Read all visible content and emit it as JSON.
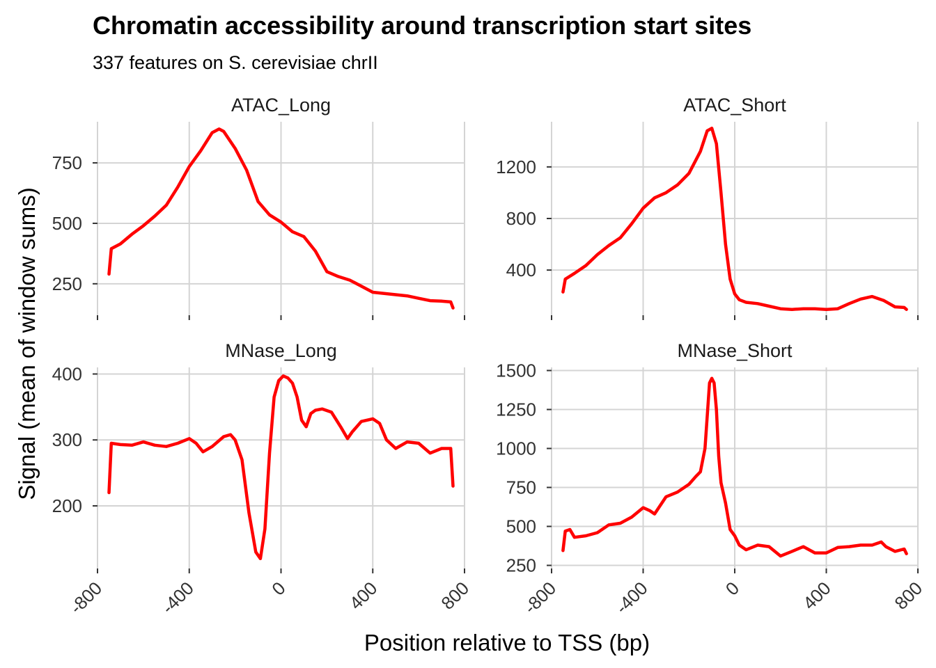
{
  "chart_data": {
    "type": "line",
    "title": "Chromatin accessibility around transcription start sites",
    "subtitle": "337 features on S. cerevisiae chrII",
    "xlabel": "Position relative to TSS (bp)",
    "ylabel": "Signal (mean of window sums)",
    "xlim": [
      -800,
      800
    ],
    "x_ticks": [
      "-800",
      "-400",
      "0",
      "400",
      "800"
    ],
    "grid": true,
    "color": "#ff0000",
    "panels": [
      {
        "name": "ATAC_Long",
        "ylim": [
          120,
          920
        ],
        "y_ticks": [
          "250",
          "500",
          "750"
        ],
        "x": [
          -750,
          -740,
          -700,
          -650,
          -600,
          -550,
          -500,
          -450,
          -400,
          -350,
          -300,
          -270,
          -250,
          -200,
          -150,
          -100,
          -50,
          0,
          50,
          100,
          150,
          200,
          250,
          300,
          350,
          400,
          450,
          500,
          550,
          600,
          650,
          700,
          740,
          750
        ],
        "values": [
          290,
          395,
          415,
          455,
          490,
          530,
          575,
          650,
          735,
          800,
          875,
          890,
          880,
          810,
          720,
          590,
          535,
          505,
          465,
          445,
          385,
          300,
          280,
          265,
          240,
          215,
          210,
          205,
          200,
          190,
          180,
          178,
          175,
          150
        ]
      },
      {
        "name": "ATAC_Short",
        "ylim": [
          50,
          1550
        ],
        "y_ticks": [
          "400",
          "800",
          "1200"
        ],
        "x": [
          -750,
          -740,
          -700,
          -650,
          -600,
          -550,
          -500,
          -450,
          -400,
          -350,
          -300,
          -250,
          -200,
          -150,
          -120,
          -100,
          -80,
          -60,
          -40,
          -20,
          0,
          20,
          50,
          100,
          150,
          200,
          250,
          300,
          350,
          400,
          450,
          500,
          550,
          600,
          650,
          700,
          740,
          750
        ],
        "values": [
          230,
          330,
          375,
          435,
          520,
          590,
          650,
          760,
          880,
          960,
          1000,
          1060,
          1150,
          1320,
          1480,
          1500,
          1380,
          1000,
          600,
          330,
          215,
          170,
          150,
          140,
          120,
          100,
          95,
          100,
          100,
          95,
          100,
          140,
          175,
          195,
          165,
          115,
          110,
          95
        ]
      },
      {
        "name": "MNase_Long",
        "ylim": [
          105,
          410
        ],
        "y_ticks": [
          "200",
          "300",
          "400"
        ],
        "x": [
          -750,
          -740,
          -700,
          -650,
          -600,
          -550,
          -500,
          -450,
          -400,
          -370,
          -340,
          -300,
          -250,
          -220,
          -200,
          -170,
          -140,
          -110,
          -90,
          -70,
          -50,
          -30,
          -10,
          10,
          30,
          50,
          70,
          90,
          110,
          130,
          150,
          180,
          220,
          260,
          290,
          310,
          350,
          400,
          430,
          460,
          500,
          550,
          600,
          650,
          700,
          740,
          750
        ],
        "values": [
          220,
          295,
          293,
          292,
          297,
          292,
          290,
          295,
          302,
          295,
          282,
          290,
          305,
          308,
          300,
          270,
          190,
          130,
          120,
          165,
          280,
          365,
          390,
          397,
          394,
          386,
          365,
          330,
          320,
          340,
          345,
          347,
          342,
          320,
          302,
          312,
          328,
          332,
          325,
          300,
          287,
          297,
          295,
          280,
          287,
          287,
          230
        ]
      },
      {
        "name": "MNase_Short",
        "ylim": [
          230,
          1520
        ],
        "y_ticks": [
          "250",
          "500",
          "750",
          "1000",
          "1250",
          "1500"
        ],
        "x": [
          -750,
          -740,
          -720,
          -700,
          -650,
          -600,
          -550,
          -500,
          -450,
          -400,
          -370,
          -350,
          -300,
          -250,
          -200,
          -170,
          -150,
          -130,
          -110,
          -100,
          -90,
          -80,
          -70,
          -60,
          -40,
          -20,
          0,
          20,
          50,
          100,
          150,
          200,
          250,
          300,
          350,
          400,
          450,
          500,
          550,
          600,
          640,
          660,
          700,
          740,
          750
        ],
        "values": [
          345,
          470,
          480,
          430,
          440,
          460,
          510,
          520,
          560,
          620,
          600,
          580,
          690,
          720,
          770,
          820,
          850,
          1000,
          1420,
          1450,
          1420,
          1250,
          950,
          780,
          650,
          480,
          440,
          380,
          350,
          380,
          370,
          310,
          340,
          370,
          330,
          330,
          365,
          370,
          380,
          380,
          400,
          370,
          340,
          355,
          325
        ]
      }
    ]
  }
}
